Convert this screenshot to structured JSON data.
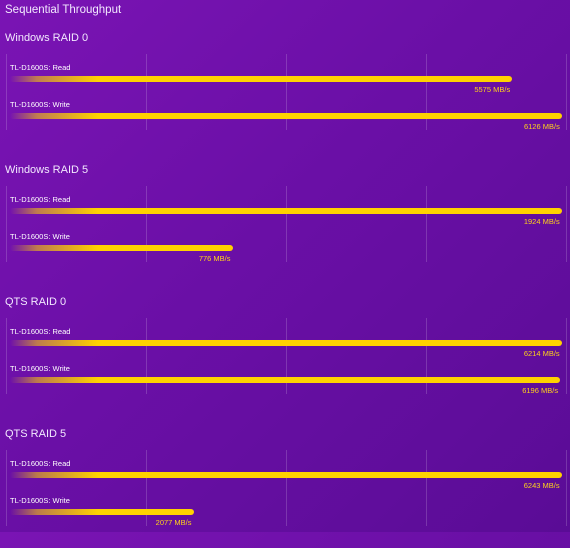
{
  "title": "Sequential Throughput",
  "colors": {
    "bar": "#ffd200",
    "value_text": "#ffd21a",
    "background": "#6a0fa6"
  },
  "chart_data": [
    {
      "type": "bar",
      "title": "Windows RAID 0",
      "categories": [
        "TL-D1600S: Read",
        "TL-D1600S: Write"
      ],
      "values": [
        5575,
        6126
      ],
      "value_labels": [
        "5575 MB/s",
        "6126 MB/s"
      ],
      "unit": "MB/s",
      "xlim": [
        0,
        6150
      ]
    },
    {
      "type": "bar",
      "title": "Windows RAID 5",
      "categories": [
        "TL-D1600S: Read",
        "TL-D1600S: Write"
      ],
      "values": [
        1924,
        776
      ],
      "value_labels": [
        "1924 MB/s",
        "776 MB/s"
      ],
      "unit": "MB/s",
      "xlim": [
        0,
        1932
      ]
    },
    {
      "type": "bar",
      "title": "QTS RAID 0",
      "categories": [
        "TL-D1600S: Read",
        "TL-D1600S: Write"
      ],
      "values": [
        6214,
        6196
      ],
      "value_labels": [
        "6214 MB/s",
        "6196 MB/s"
      ],
      "unit": "MB/s",
      "xlim": [
        0,
        6240
      ]
    },
    {
      "type": "bar",
      "title": "QTS RAID 5",
      "categories": [
        "TL-D1600S: Read",
        "TL-D1600S: Write"
      ],
      "values": [
        6243,
        2077
      ],
      "value_labels": [
        "6243 MB/s",
        "2077 MB/s"
      ],
      "unit": "MB/s",
      "xlim": [
        0,
        6270
      ]
    }
  ]
}
